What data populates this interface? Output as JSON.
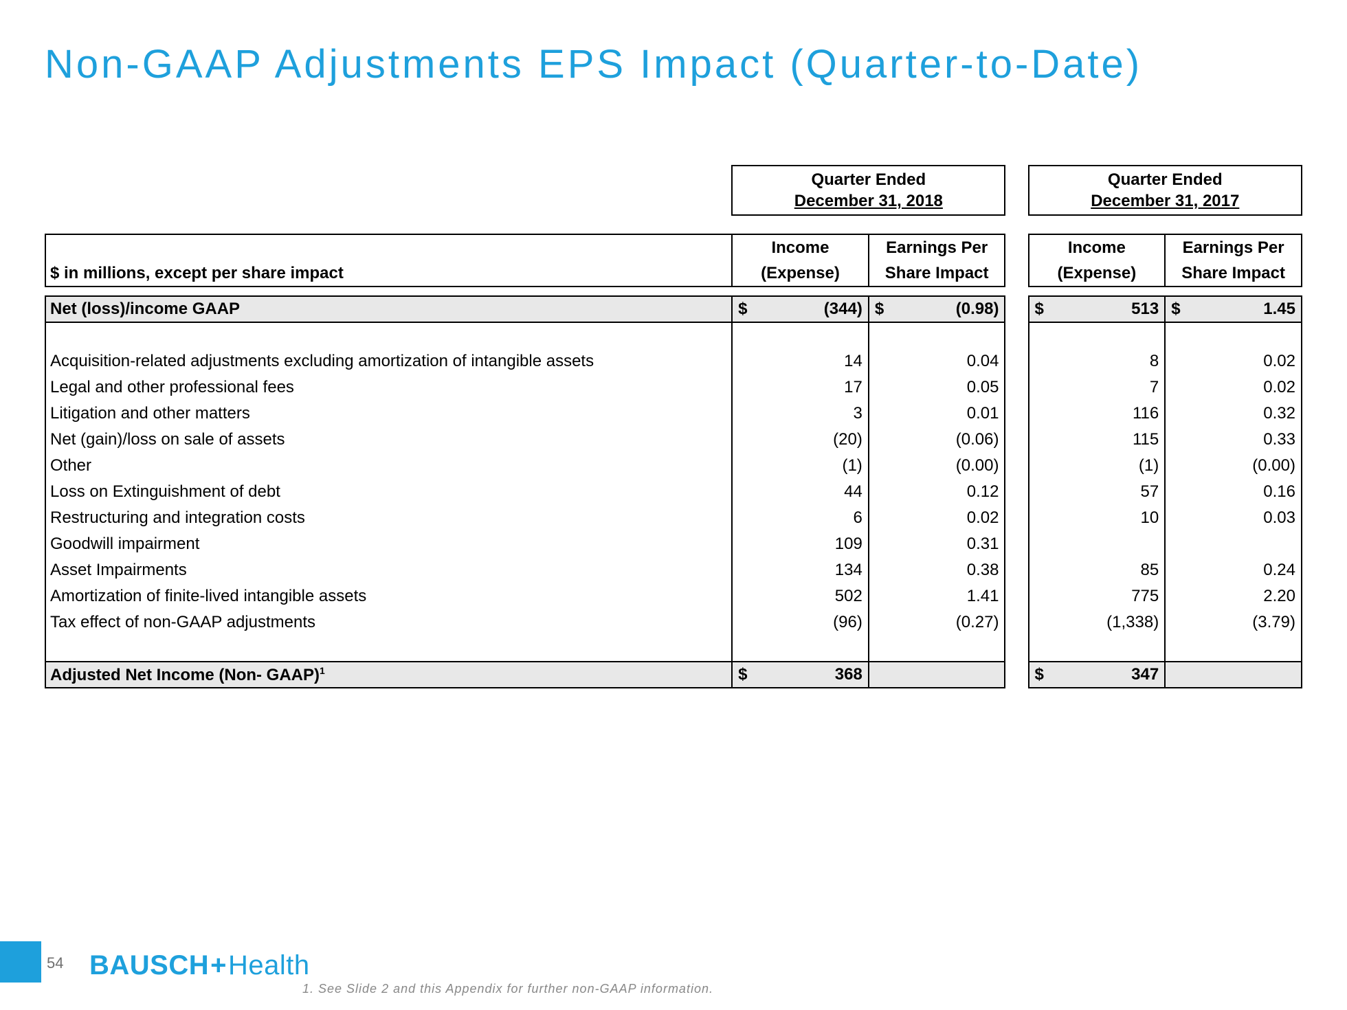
{
  "colors": {
    "accent": "#1ea0dc",
    "text": "#000000",
    "shade": "#e8e8e8",
    "footnote": "#888888",
    "pagenum": "#6f6f6f"
  },
  "title": "Non-GAAP Adjustments EPS Impact (Quarter-to-Date)",
  "periods": {
    "p1_line1": "Quarter Ended",
    "p1_line2": "December 31, 2018",
    "p2_line1": "Quarter Ended",
    "p2_line2": "December 31, 2017"
  },
  "headers": {
    "label": "$ in millions, except per share impact",
    "income_l1": "Income",
    "income_l2": "(Expense)",
    "eps_l1": "Earnings Per",
    "eps_l2": "Share Impact"
  },
  "dollar": "$",
  "rows": {
    "net_gaap": {
      "label": "Net (loss)/income GAAP",
      "p1_inc": "(344)",
      "p1_eps": "(0.98)",
      "p2_inc": "513",
      "p2_eps": "1.45"
    },
    "acq": {
      "label": "Acquisition-related adjustments excluding amortization of intangible assets",
      "p1_inc": "14",
      "p1_eps": "0.04",
      "p2_inc": "8",
      "p2_eps": "0.02"
    },
    "legal": {
      "label": "Legal and other professional fees",
      "p1_inc": "17",
      "p1_eps": "0.05",
      "p2_inc": "7",
      "p2_eps": "0.02"
    },
    "litig": {
      "label": "Litigation and other matters",
      "p1_inc": "3",
      "p1_eps": "0.01",
      "p2_inc": "116",
      "p2_eps": "0.32"
    },
    "gain": {
      "label": "Net (gain)/loss on sale of assets",
      "p1_inc": "(20)",
      "p1_eps": "(0.06)",
      "p2_inc": "115",
      "p2_eps": "0.33"
    },
    "other": {
      "label": "Other",
      "p1_inc": "(1)",
      "p1_eps": "(0.00)",
      "p2_inc": "(1)",
      "p2_eps": "(0.00)"
    },
    "exting": {
      "label": "Loss on Extinguishment of debt",
      "p1_inc": "44",
      "p1_eps": "0.12",
      "p2_inc": "57",
      "p2_eps": "0.16"
    },
    "restr": {
      "label": "Restructuring and integration costs",
      "p1_inc": "6",
      "p1_eps": "0.02",
      "p2_inc": "10",
      "p2_eps": "0.03"
    },
    "goodw": {
      "label": "Goodwill impairment",
      "p1_inc": "109",
      "p1_eps": "0.31",
      "p2_inc": "",
      "p2_eps": ""
    },
    "asset": {
      "label": "Asset Impairments",
      "p1_inc": "134",
      "p1_eps": "0.38",
      "p2_inc": "85",
      "p2_eps": "0.24"
    },
    "amort": {
      "label": "Amortization of finite-lived intangible assets",
      "p1_inc": "502",
      "p1_eps": "1.41",
      "p2_inc": "775",
      "p2_eps": "2.20"
    },
    "tax": {
      "label": "Tax effect of non-GAAP adjustments",
      "p1_inc": "(96)",
      "p1_eps": "(0.27)",
      "p2_inc": "(1,338)",
      "p2_eps": "(3.79)"
    },
    "adj": {
      "label": "Adjusted Net Income (Non- GAAP)",
      "p1_inc": "368",
      "p1_eps": "",
      "p2_inc": "347",
      "p2_eps": ""
    }
  },
  "footnote_sup": "1",
  "page_number": "54",
  "logo": {
    "part1": "BAUSCH",
    "plus": "+",
    "part2": "Health"
  },
  "footnote": "1. See Slide 2 and this Appendix for further non-GAAP information."
}
